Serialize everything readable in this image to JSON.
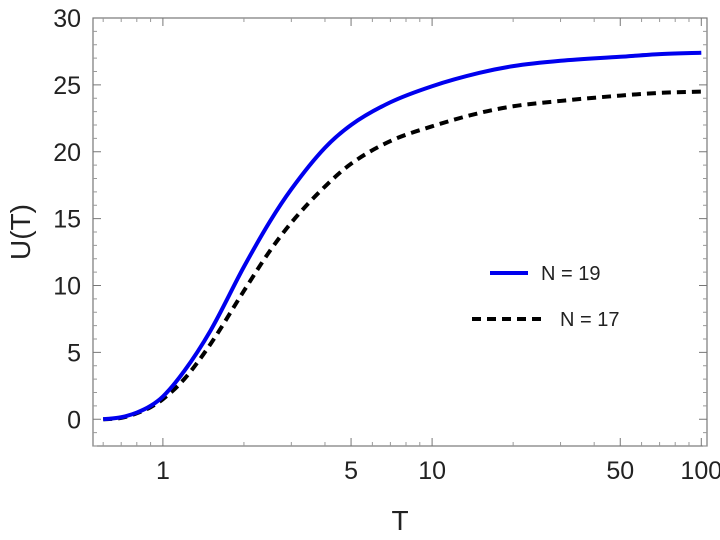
{
  "chart_data": {
    "type": "line",
    "xlabel": "T",
    "ylabel": "U(T)",
    "xscale": "log",
    "xlim": [
      0.55,
      105
    ],
    "ylim": [
      -2,
      30
    ],
    "x_ticks": [
      1,
      5,
      10,
      50,
      100
    ],
    "x_tick_labels": [
      "1",
      "5",
      "10",
      "50",
      "100"
    ],
    "y_ticks": [
      0,
      5,
      10,
      15,
      20,
      25,
      30
    ],
    "y_tick_labels": [
      "0",
      "5",
      "10",
      "15",
      "20",
      "25",
      "30"
    ],
    "grid": false,
    "legend_position": "right",
    "series": [
      {
        "name": "N = 19",
        "style": "solid",
        "color": "#0000ee",
        "x": [
          0.6,
          0.7,
          0.8,
          0.9,
          1.0,
          1.2,
          1.5,
          2.0,
          2.5,
          3.0,
          4.0,
          5.0,
          7.0,
          10.0,
          15.0,
          20.0,
          30.0,
          50.0,
          70.0,
          100.0
        ],
        "y": [
          0.0,
          0.15,
          0.5,
          1.0,
          1.7,
          3.6,
          6.6,
          11.4,
          14.8,
          17.2,
          20.3,
          22.0,
          23.7,
          24.9,
          25.9,
          26.4,
          26.8,
          27.1,
          27.3,
          27.4
        ]
      },
      {
        "name": "N = 17",
        "style": "dashed",
        "color": "#000000",
        "x": [
          0.6,
          0.7,
          0.8,
          0.9,
          1.0,
          1.2,
          1.5,
          2.0,
          2.5,
          3.0,
          4.0,
          5.0,
          7.0,
          10.0,
          15.0,
          20.0,
          30.0,
          50.0,
          70.0,
          100.0
        ],
        "y": [
          0.0,
          0.1,
          0.45,
          0.9,
          1.5,
          3.0,
          5.6,
          9.6,
          12.6,
          14.7,
          17.4,
          19.1,
          20.8,
          21.9,
          22.9,
          23.4,
          23.8,
          24.2,
          24.4,
          24.5
        ]
      }
    ]
  }
}
